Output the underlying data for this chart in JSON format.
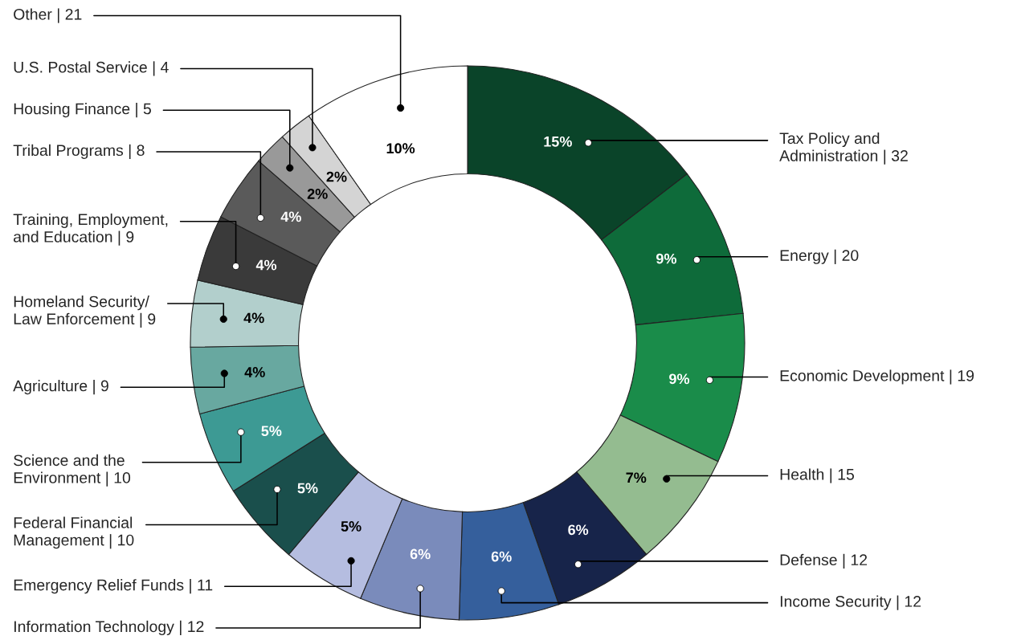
{
  "chart_data": {
    "type": "donut",
    "categories": [
      "Tax Policy and Administration | 32",
      "Energy | 20",
      "Economic Development | 19",
      "Health | 15",
      "Defense | 12",
      "Income Security | 12",
      "Information Technology | 12",
      "Emergency Relief Funds | 11",
      "Federal Financial Management | 10",
      "Science and the Environment | 10",
      "Agriculture | 9",
      "Homeland Security/ Law Enforcement | 9",
      "Training, Employment, and Education | 9",
      "Tribal Programs | 8",
      "Housing Finance | 5",
      "U.S. Postal Service | 4",
      "Other | 21"
    ],
    "values": [
      15,
      9,
      9,
      7,
      6,
      6,
      6,
      5,
      5,
      5,
      4,
      4,
      4,
      4,
      2,
      2,
      10
    ],
    "value_labels": [
      "15%",
      "9%",
      "9%",
      "7%",
      "6%",
      "6%",
      "6%",
      "5%",
      "5%",
      "5%",
      "4%",
      "4%",
      "4%",
      "4%",
      "2%",
      "2%",
      "10%"
    ],
    "colors": [
      "#0a4429",
      "#0e6b3a",
      "#1a8c4a",
      "#94bc90",
      "#17244a",
      "#355f9c",
      "#7a8bbb",
      "#b5bde0",
      "#1a4f4c",
      "#3d9a94",
      "#68a8a0",
      "#b2cfcc",
      "#3a3a3a",
      "#5a5a5a",
      "#999999",
      "#d4d4d4",
      "#ffffff"
    ]
  }
}
